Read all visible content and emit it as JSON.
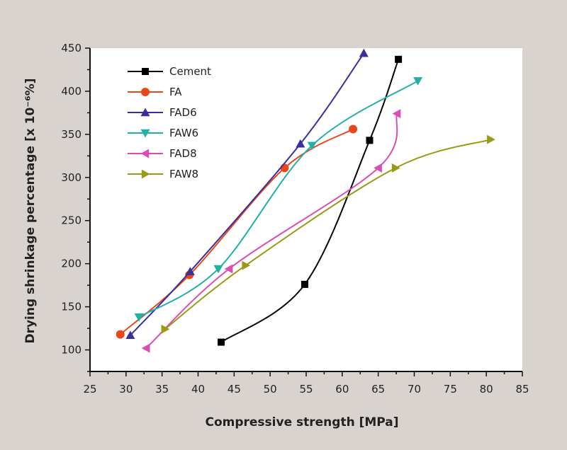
{
  "chart_data": {
    "type": "line",
    "title": "",
    "xlabel": "Compressive strength [MPa]",
    "ylabel": "Drying shrinkage percentage [x 10⁻⁶%]",
    "xlim": [
      25,
      85
    ],
    "ylim": [
      75,
      450
    ],
    "xticks": [
      25,
      30,
      35,
      40,
      45,
      50,
      55,
      60,
      65,
      70,
      75,
      80,
      85
    ],
    "yticks": [
      100,
      150,
      200,
      250,
      300,
      350,
      400,
      450
    ],
    "grid": false,
    "legend_position": "top-left",
    "series": [
      {
        "name": "Cement",
        "color": "#000000",
        "marker": "square",
        "x": [
          43.2,
          54.8,
          63.8,
          67.8
        ],
        "y": [
          109,
          176,
          343,
          437
        ]
      },
      {
        "name": "FA",
        "color": "#e8471c",
        "marker": "circle",
        "x": [
          29.2,
          38.8,
          52.0,
          61.5
        ],
        "y": [
          118,
          187,
          311,
          356
        ]
      },
      {
        "name": "FAD6",
        "color": "#3a2f9e",
        "marker": "triangle-up",
        "x": [
          30.6,
          38.9,
          54.2,
          63.0
        ],
        "y": [
          117,
          191,
          339,
          444
        ]
      },
      {
        "name": "FAW6",
        "color": "#1fb0a8",
        "marker": "triangle-down",
        "x": [
          31.8,
          42.8,
          55.8,
          70.5
        ],
        "y": [
          138,
          194,
          337,
          412
        ]
      },
      {
        "name": "FAD8",
        "color": "#dc4cb4",
        "marker": "triangle-left",
        "x": [
          32.8,
          44.3,
          65.0,
          67.6
        ],
        "y": [
          102,
          194,
          311,
          374
        ]
      },
      {
        "name": "FAW8",
        "color": "#9a9a14",
        "marker": "triangle-right",
        "x": [
          35.4,
          46.6,
          67.4,
          80.6
        ],
        "y": [
          124,
          198,
          311,
          344
        ]
      }
    ]
  }
}
